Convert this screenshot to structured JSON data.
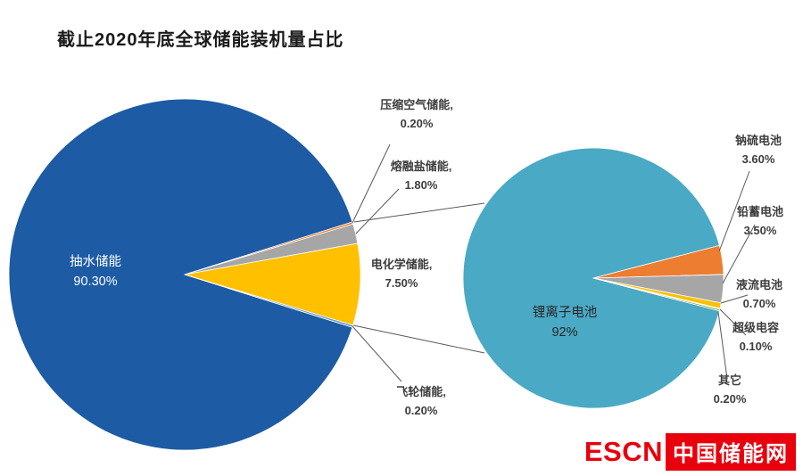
{
  "title": "截止2020年底全球储能装机量占比",
  "chart_data": {
    "type": "pie",
    "title": "截止2020年底全球储能装机量占比",
    "legend": "none",
    "background": "#ffffff",
    "pies": [
      {
        "id": "storage-overall",
        "slices": [
          {
            "id": "pumped-hydro",
            "name": "抽水储能",
            "display_name": "抽水储能",
            "value": 90.3,
            "pct_label": "90.30%",
            "color": "#1d5ba4"
          },
          {
            "id": "compressed-air",
            "name": "压缩空气储能",
            "display_name": "压缩空气储能,",
            "value": 0.2,
            "pct_label": "0.20%",
            "color": "#ed7d31"
          },
          {
            "id": "molten-salt",
            "name": "熔融盐储能",
            "display_name": "熔融盐储能,",
            "value": 1.8,
            "pct_label": "1.80%",
            "color": "#a6a6a6"
          },
          {
            "id": "electrochemical",
            "name": "电化学储能",
            "display_name": "电化学储能,",
            "value": 7.5,
            "pct_label": "7.50%",
            "color": "#ffc000"
          },
          {
            "id": "flywheel",
            "name": "飞轮储能",
            "display_name": "飞轮储能,",
            "value": 0.2,
            "pct_label": "0.20%",
            "color": "#5b9bd5"
          }
        ]
      },
      {
        "id": "electrochemical-breakdown",
        "slices": [
          {
            "id": "lithium-ion",
            "name": "锂离子电池",
            "display_name": "锂离子电池",
            "value": 92.0,
            "pct_label": "92%",
            "color": "#4aa9c4"
          },
          {
            "id": "sodium-sulfur",
            "name": "钠硫电池",
            "display_name": "钠硫电池",
            "value": 3.6,
            "pct_label": "3.60%",
            "color": "#ed7d31"
          },
          {
            "id": "lead-acid",
            "name": "铅蓄电池",
            "display_name": "铅蓄电池",
            "value": 3.5,
            "pct_label": "3.50%",
            "color": "#a6a6a6"
          },
          {
            "id": "flow-battery",
            "name": "液流电池",
            "display_name": "液流电池",
            "value": 0.7,
            "pct_label": "0.70%",
            "color": "#ffc000"
          },
          {
            "id": "supercapacitor",
            "name": "超级电容",
            "display_name": "超级电容",
            "value": 0.1,
            "pct_label": "0.10%",
            "color": "#5b9bd5"
          },
          {
            "id": "others",
            "name": "其它",
            "display_name": "其它",
            "value": 0.2,
            "pct_label": "0.20%",
            "color": "#70ad47"
          }
        ]
      }
    ],
    "colors": {
      "leader_line": "#595959",
      "pumped_blue": "#1d5ba4",
      "lithium_teal": "#4aa9c4",
      "accent_orange": "#ed7d31",
      "accent_gray": "#a6a6a6",
      "accent_yellow": "#ffc000",
      "brand_red": "#e8000d"
    }
  },
  "logo": {
    "escn": "ESCN",
    "site": "中国储能网"
  }
}
